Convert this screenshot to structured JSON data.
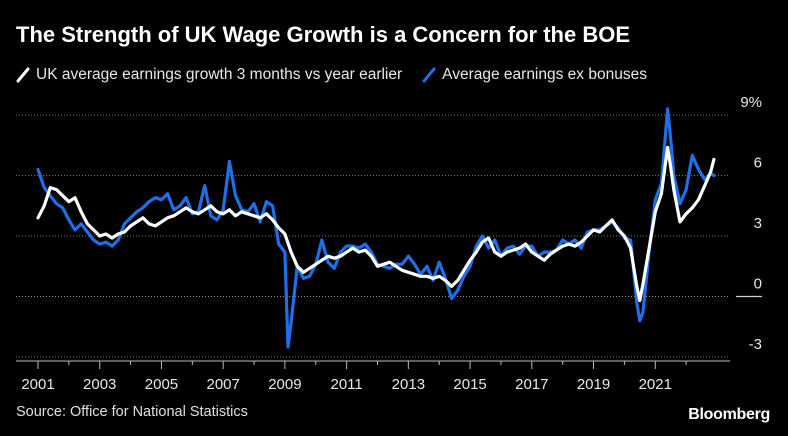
{
  "title": "The Strength of UK Wage Growth is a Concern for the BOE",
  "source": "Source: Office for National Statistics",
  "brand": "Bloomberg",
  "colors": {
    "background": "#000000",
    "series1": "#ffffff",
    "series2": "#1f6fe8",
    "grid": "#777777"
  },
  "chart_data": {
    "type": "line",
    "title": "The Strength of UK Wage Growth is a Concern for the BOE",
    "xlabel": "",
    "ylabel": "",
    "xlim": [
      2000.7,
      2023.2
    ],
    "ylim": [
      -3,
      9
    ],
    "x_ticks": [
      "2001",
      "2003",
      "2005",
      "2007",
      "2009",
      "2011",
      "2013",
      "2015",
      "2017",
      "2019",
      "2021"
    ],
    "y_ticks": [
      "9%",
      "6",
      "3",
      "0",
      "-3"
    ],
    "grid": "horizontal dotted",
    "legend_position": "top-left",
    "series": [
      {
        "name": "UK average earnings growth 3 months vs year earlier",
        "color": "#ffffff",
        "points": [
          [
            2001.0,
            3.9
          ],
          [
            2001.2,
            4.5
          ],
          [
            2001.4,
            5.4
          ],
          [
            2001.6,
            5.3
          ],
          [
            2001.8,
            5.0
          ],
          [
            2002.0,
            4.7
          ],
          [
            2002.2,
            4.9
          ],
          [
            2002.4,
            4.2
          ],
          [
            2002.6,
            3.6
          ],
          [
            2002.8,
            3.3
          ],
          [
            2003.0,
            3.0
          ],
          [
            2003.2,
            3.1
          ],
          [
            2003.4,
            2.9
          ],
          [
            2003.6,
            3.1
          ],
          [
            2003.8,
            3.2
          ],
          [
            2004.0,
            3.5
          ],
          [
            2004.2,
            3.7
          ],
          [
            2004.4,
            3.9
          ],
          [
            2004.6,
            3.6
          ],
          [
            2004.8,
            3.5
          ],
          [
            2005.0,
            3.7
          ],
          [
            2005.2,
            3.9
          ],
          [
            2005.4,
            4.0
          ],
          [
            2005.6,
            4.2
          ],
          [
            2005.8,
            4.4
          ],
          [
            2006.0,
            4.2
          ],
          [
            2006.2,
            4.1
          ],
          [
            2006.4,
            4.3
          ],
          [
            2006.6,
            4.5
          ],
          [
            2006.8,
            4.2
          ],
          [
            2007.0,
            4.1
          ],
          [
            2007.2,
            4.3
          ],
          [
            2007.4,
            4.0
          ],
          [
            2007.6,
            4.2
          ],
          [
            2007.8,
            4.1
          ],
          [
            2008.0,
            4.0
          ],
          [
            2008.2,
            3.9
          ],
          [
            2008.4,
            4.1
          ],
          [
            2008.6,
            3.8
          ],
          [
            2008.8,
            3.4
          ],
          [
            2009.0,
            3.1
          ],
          [
            2009.2,
            2.2
          ],
          [
            2009.4,
            1.5
          ],
          [
            2009.6,
            1.2
          ],
          [
            2009.8,
            1.4
          ],
          [
            2010.0,
            1.6
          ],
          [
            2010.2,
            1.8
          ],
          [
            2010.4,
            2.0
          ],
          [
            2010.6,
            1.9
          ],
          [
            2010.8,
            2.0
          ],
          [
            2011.0,
            2.2
          ],
          [
            2011.2,
            2.4
          ],
          [
            2011.4,
            2.2
          ],
          [
            2011.6,
            2.3
          ],
          [
            2011.8,
            2.0
          ],
          [
            2012.0,
            1.5
          ],
          [
            2012.2,
            1.6
          ],
          [
            2012.4,
            1.7
          ],
          [
            2012.6,
            1.5
          ],
          [
            2012.8,
            1.3
          ],
          [
            2013.0,
            1.2
          ],
          [
            2013.2,
            1.1
          ],
          [
            2013.4,
            1.0
          ],
          [
            2013.6,
            1.0
          ],
          [
            2013.8,
            0.9
          ],
          [
            2014.0,
            1.0
          ],
          [
            2014.2,
            0.8
          ],
          [
            2014.4,
            0.5
          ],
          [
            2014.6,
            0.8
          ],
          [
            2014.8,
            1.3
          ],
          [
            2015.0,
            1.8
          ],
          [
            2015.2,
            2.2
          ],
          [
            2015.4,
            2.7
          ],
          [
            2015.6,
            2.9
          ],
          [
            2015.8,
            2.2
          ],
          [
            2016.0,
            2.0
          ],
          [
            2016.2,
            2.2
          ],
          [
            2016.4,
            2.3
          ],
          [
            2016.6,
            2.4
          ],
          [
            2016.8,
            2.6
          ],
          [
            2017.0,
            2.2
          ],
          [
            2017.2,
            2.0
          ],
          [
            2017.4,
            1.8
          ],
          [
            2017.6,
            2.1
          ],
          [
            2017.8,
            2.3
          ],
          [
            2018.0,
            2.5
          ],
          [
            2018.2,
            2.6
          ],
          [
            2018.4,
            2.5
          ],
          [
            2018.6,
            2.7
          ],
          [
            2018.8,
            3.0
          ],
          [
            2019.0,
            3.3
          ],
          [
            2019.2,
            3.2
          ],
          [
            2019.4,
            3.5
          ],
          [
            2019.6,
            3.8
          ],
          [
            2019.8,
            3.3
          ],
          [
            2020.0,
            3.0
          ],
          [
            2020.2,
            2.4
          ],
          [
            2020.4,
            0.5
          ],
          [
            2020.5,
            -0.2
          ],
          [
            2020.6,
            0.6
          ],
          [
            2020.8,
            2.4
          ],
          [
            2021.0,
            4.2
          ],
          [
            2021.2,
            5.1
          ],
          [
            2021.4,
            7.4
          ],
          [
            2021.5,
            6.4
          ],
          [
            2021.6,
            5.3
          ],
          [
            2021.8,
            3.7
          ],
          [
            2022.0,
            4.1
          ],
          [
            2022.2,
            4.4
          ],
          [
            2022.4,
            4.8
          ],
          [
            2022.6,
            5.5
          ],
          [
            2022.8,
            6.2
          ],
          [
            2022.9,
            6.8
          ]
        ]
      },
      {
        "name": "Average earnings ex bonuses",
        "color": "#1f6fe8",
        "points": [
          [
            2001.0,
            6.3
          ],
          [
            2001.2,
            5.4
          ],
          [
            2001.4,
            5.0
          ],
          [
            2001.6,
            4.6
          ],
          [
            2001.8,
            4.4
          ],
          [
            2002.0,
            3.8
          ],
          [
            2002.2,
            3.3
          ],
          [
            2002.4,
            3.6
          ],
          [
            2002.6,
            3.2
          ],
          [
            2002.8,
            2.8
          ],
          [
            2003.0,
            2.6
          ],
          [
            2003.2,
            2.7
          ],
          [
            2003.4,
            2.5
          ],
          [
            2003.6,
            2.8
          ],
          [
            2003.8,
            3.6
          ],
          [
            2004.0,
            3.9
          ],
          [
            2004.2,
            4.2
          ],
          [
            2004.4,
            4.4
          ],
          [
            2004.6,
            4.7
          ],
          [
            2004.8,
            4.9
          ],
          [
            2005.0,
            4.8
          ],
          [
            2005.2,
            5.1
          ],
          [
            2005.4,
            4.3
          ],
          [
            2005.6,
            4.5
          ],
          [
            2005.8,
            4.9
          ],
          [
            2006.0,
            4.1
          ],
          [
            2006.2,
            4.2
          ],
          [
            2006.4,
            5.5
          ],
          [
            2006.6,
            4.0
          ],
          [
            2006.8,
            3.8
          ],
          [
            2007.0,
            4.3
          ],
          [
            2007.2,
            6.7
          ],
          [
            2007.4,
            5.0
          ],
          [
            2007.6,
            4.3
          ],
          [
            2007.8,
            4.2
          ],
          [
            2008.0,
            4.6
          ],
          [
            2008.2,
            3.7
          ],
          [
            2008.4,
            4.7
          ],
          [
            2008.6,
            4.5
          ],
          [
            2008.8,
            2.6
          ],
          [
            2009.0,
            2.2
          ],
          [
            2009.1,
            -2.5
          ],
          [
            2009.2,
            -1.3
          ],
          [
            2009.4,
            1.5
          ],
          [
            2009.6,
            0.9
          ],
          [
            2009.8,
            1.0
          ],
          [
            2010.0,
            1.6
          ],
          [
            2010.2,
            2.8
          ],
          [
            2010.4,
            1.7
          ],
          [
            2010.6,
            1.4
          ],
          [
            2010.8,
            2.2
          ],
          [
            2011.0,
            2.5
          ],
          [
            2011.2,
            2.5
          ],
          [
            2011.4,
            2.4
          ],
          [
            2011.6,
            2.6
          ],
          [
            2011.8,
            2.2
          ],
          [
            2012.0,
            1.6
          ],
          [
            2012.2,
            1.5
          ],
          [
            2012.4,
            1.4
          ],
          [
            2012.6,
            1.6
          ],
          [
            2012.8,
            1.6
          ],
          [
            2013.0,
            2.0
          ],
          [
            2013.2,
            1.6
          ],
          [
            2013.4,
            1.1
          ],
          [
            2013.6,
            1.5
          ],
          [
            2013.8,
            0.8
          ],
          [
            2014.0,
            1.7
          ],
          [
            2014.2,
            0.9
          ],
          [
            2014.4,
            -0.1
          ],
          [
            2014.6,
            0.3
          ],
          [
            2014.8,
            1.0
          ],
          [
            2015.0,
            1.5
          ],
          [
            2015.2,
            2.5
          ],
          [
            2015.4,
            3.0
          ],
          [
            2015.6,
            2.4
          ],
          [
            2015.8,
            2.8
          ],
          [
            2016.0,
            2.0
          ],
          [
            2016.2,
            2.4
          ],
          [
            2016.4,
            2.5
          ],
          [
            2016.6,
            2.1
          ],
          [
            2016.8,
            2.5
          ],
          [
            2017.0,
            2.5
          ],
          [
            2017.2,
            2.0
          ],
          [
            2017.4,
            2.2
          ],
          [
            2017.6,
            2.2
          ],
          [
            2017.8,
            2.3
          ],
          [
            2018.0,
            2.8
          ],
          [
            2018.2,
            2.6
          ],
          [
            2018.4,
            2.8
          ],
          [
            2018.6,
            2.4
          ],
          [
            2018.8,
            3.2
          ],
          [
            2019.0,
            3.3
          ],
          [
            2019.2,
            3.3
          ],
          [
            2019.4,
            3.5
          ],
          [
            2019.6,
            3.7
          ],
          [
            2019.8,
            3.4
          ],
          [
            2020.0,
            2.9
          ],
          [
            2020.2,
            2.8
          ],
          [
            2020.4,
            -0.3
          ],
          [
            2020.5,
            -1.2
          ],
          [
            2020.6,
            -0.8
          ],
          [
            2020.8,
            2.2
          ],
          [
            2021.0,
            4.8
          ],
          [
            2021.2,
            5.6
          ],
          [
            2021.4,
            9.3
          ],
          [
            2021.5,
            7.8
          ],
          [
            2021.6,
            6.0
          ],
          [
            2021.8,
            4.6
          ],
          [
            2022.0,
            5.3
          ],
          [
            2022.2,
            7.0
          ],
          [
            2022.4,
            6.3
          ],
          [
            2022.6,
            5.8
          ],
          [
            2022.8,
            6.1
          ],
          [
            2022.9,
            6.0
          ]
        ]
      }
    ]
  }
}
